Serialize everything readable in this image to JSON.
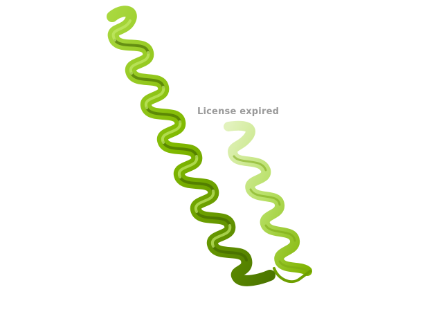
{
  "watermark": {
    "text": "License expired"
  },
  "colors": {
    "background": "#ffffff",
    "helix_main": "#7fb800",
    "helix_light": "#a5d63a",
    "helix_dark": "#4f7a00",
    "helix_pale": "#cde89a",
    "watermark": "#9a9a9a"
  },
  "scene": {
    "representation": "cartoon",
    "structure": "helix-hairpin"
  }
}
